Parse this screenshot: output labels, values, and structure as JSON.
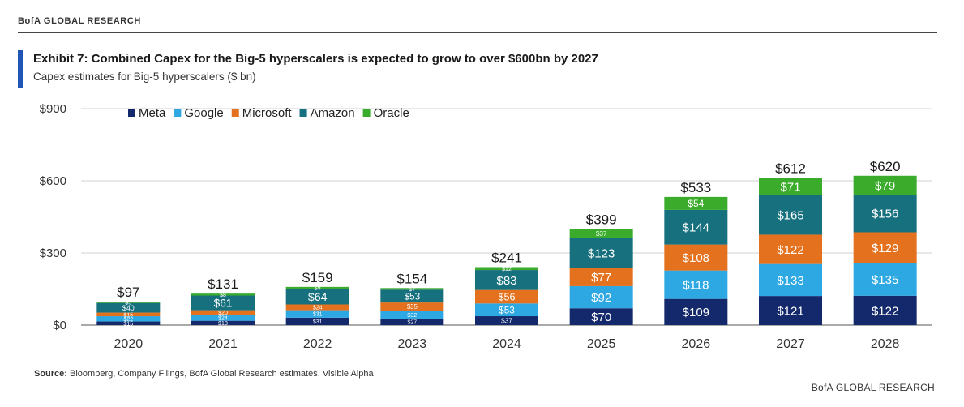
{
  "header": {
    "brand": "BofA GLOBAL RESEARCH",
    "title": "Exhibit 7: Combined Capex for the Big-5 hyperscalers is expected to grow to over $600bn by 2027",
    "subtitle": "Capex estimates for Big-5 hyperscalers ($ bn)"
  },
  "footer": {
    "source_label": "Source:",
    "source_text": "Bloomberg, Company Filings, BofA Global Research estimates, Visible Alpha",
    "brand": "BofA GLOBAL RESEARCH"
  },
  "chart_data": {
    "type": "bar",
    "stacked": true,
    "categories": [
      "2020",
      "2021",
      "2022",
      "2023",
      "2024",
      "2025",
      "2026",
      "2027",
      "2028"
    ],
    "ylim": [
      0,
      900
    ],
    "yticks": [
      0,
      300,
      600,
      900
    ],
    "ytick_labels": [
      "$0",
      "$300",
      "$600",
      "$900"
    ],
    "grid": true,
    "legend_position": "top-left",
    "series": [
      {
        "name": "Meta",
        "color": "#13296b",
        "values": [
          15,
          18,
          31,
          27,
          37,
          70,
          109,
          121,
          122
        ]
      },
      {
        "name": "Google",
        "color": "#2da8e2",
        "values": [
          22,
          24,
          31,
          32,
          53,
          92,
          118,
          133,
          135
        ]
      },
      {
        "name": "Microsoft",
        "color": "#e4711d",
        "values": [
          15,
          20,
          24,
          35,
          56,
          77,
          108,
          122,
          129
        ]
      },
      {
        "name": "Amazon",
        "color": "#17707e",
        "values": [
          40,
          61,
          64,
          53,
          83,
          123,
          144,
          165,
          156
        ]
      },
      {
        "name": "Oracle",
        "color": "#3aab2a",
        "values": [
          5,
          8,
          9,
          7,
          12,
          37,
          54,
          71,
          79
        ]
      }
    ],
    "value_labels": [
      [
        "$15",
        "$18",
        "$31",
        "$27",
        "$37",
        "$70",
        "$109",
        "$121",
        "$122"
      ],
      [
        "$22",
        "$24",
        "$31",
        "$32",
        "$53",
        "$92",
        "$118",
        "$133",
        "$135"
      ],
      [
        "$15",
        "$20",
        "$24",
        "$35",
        "$56",
        "$77",
        "$108",
        "$122",
        "$129"
      ],
      [
        "$40",
        "$61",
        "$64",
        "$53",
        "$83",
        "$123",
        "$144",
        "$165",
        "$156"
      ],
      [
        "$5",
        "$8",
        "$9",
        "$7",
        "$12",
        "$37",
        "$54",
        "$71",
        "$79"
      ]
    ],
    "totals": [
      97,
      131,
      159,
      154,
      241,
      399,
      533,
      612,
      620
    ],
    "total_labels": [
      "$97",
      "$131",
      "$159",
      "$154",
      "$241",
      "$399",
      "$533",
      "$612",
      "$620"
    ]
  }
}
